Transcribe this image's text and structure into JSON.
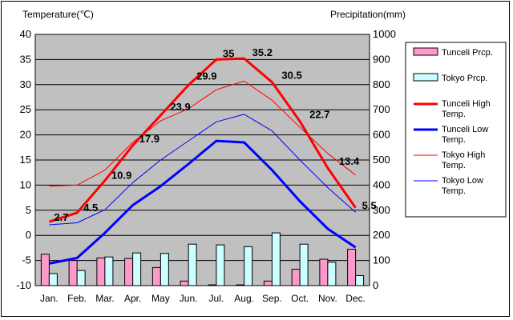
{
  "chart_data": {
    "type": "bar+line",
    "categories": [
      "Jan.",
      "Feb.",
      "Mar.",
      "Apr.",
      "May",
      "Jun.",
      "Jul.",
      "Aug.",
      "Sep.",
      "Oct.",
      "Nov.",
      "Dec."
    ],
    "left_axis": {
      "label": "Temperature(℃)",
      "min": -10,
      "max": 40,
      "step": 5
    },
    "right_axis": {
      "label": "Precipitation(mm)",
      "min": 0,
      "max": 1000,
      "step": 100
    },
    "grid": true,
    "background_color": "#c0c0c0",
    "legend_position": "right",
    "bar_series": [
      {
        "name": "Tunceli Prcp.",
        "color": "#ff99cc",
        "values": [
          125,
          100,
          110,
          108,
          72,
          18,
          3,
          3,
          18,
          65,
          105,
          145
        ]
      },
      {
        "name": "Tokyo Prcp.",
        "color": "#ccffff",
        "values": [
          48,
          60,
          114,
          130,
          128,
          165,
          162,
          155,
          210,
          165,
          93,
          40
        ]
      }
    ],
    "line_series": [
      {
        "name": "Tunceli High Temp.",
        "color": "#ff0000",
        "width": 3,
        "values": [
          2.7,
          4.5,
          10.9,
          17.9,
          23.9,
          29.9,
          35,
          35.2,
          30.5,
          22.7,
          13.4,
          5.5
        ],
        "labels": [
          "2.7",
          "4.5",
          "10.9",
          "17.9",
          "23.9",
          "29.9",
          "35",
          "35.2",
          "30.5",
          "22.7",
          "13.4",
          "5.5"
        ]
      },
      {
        "name": "Tunceli Low Temp.",
        "color": "#0000ff",
        "width": 3,
        "values": [
          -5.6,
          -4.5,
          0.5,
          6.0,
          9.8,
          14.2,
          18.8,
          18.5,
          13.0,
          6.8,
          1.3,
          -2.4
        ]
      },
      {
        "name": "Tokyo High Temp.",
        "color": "#ff0000",
        "width": 1,
        "values": [
          9.8,
          10.0,
          13.0,
          18.5,
          22.8,
          25.2,
          29.0,
          30.7,
          26.9,
          21.5,
          16.3,
          12.0
        ]
      },
      {
        "name": "Tokyo Low Temp.",
        "color": "#0000ff",
        "width": 1,
        "values": [
          2.1,
          2.5,
          5.1,
          10.5,
          15.0,
          18.8,
          22.6,
          24.1,
          20.8,
          15.0,
          9.5,
          4.6
        ]
      }
    ]
  }
}
